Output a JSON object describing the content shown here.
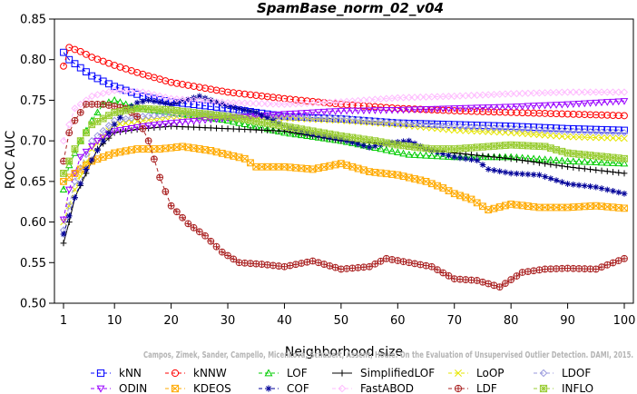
{
  "chart_data": {
    "type": "line",
    "title": "SpamBase_norm_02_v04",
    "xlabel": "Neighborhood size",
    "ylabel": "ROC AUC",
    "xlim": [
      1,
      100
    ],
    "ylim": [
      0.5,
      0.85
    ],
    "xticks": [
      1,
      10,
      20,
      30,
      40,
      50,
      60,
      70,
      80,
      90,
      100
    ],
    "yticks": [
      0.5,
      0.55,
      0.6,
      0.65,
      0.7,
      0.75,
      0.8,
      0.85
    ],
    "ytick_labels": [
      "0.50",
      "0.55",
      "0.60",
      "0.65",
      "0.70",
      "0.75",
      "0.80",
      "0.85"
    ],
    "grid": false,
    "legend_position": "bottom",
    "watermark": "Campos, Zimek, Sander, Campello, Micenkova, Schubert, Assent, Houle: On the Evaluation of Unsupervised Outlier Detection. DAMI, 2015.",
    "series": [
      {
        "name": "kNN",
        "color": "#0000ff",
        "marker": "square",
        "dash": "4,3",
        "points": [
          [
            1,
            0.809
          ],
          [
            2,
            0.8
          ],
          [
            4,
            0.79
          ],
          [
            6,
            0.78
          ],
          [
            10,
            0.767
          ],
          [
            15,
            0.755
          ],
          [
            20,
            0.748
          ],
          [
            30,
            0.74
          ],
          [
            40,
            0.73
          ],
          [
            50,
            0.727
          ],
          [
            60,
            0.722
          ],
          [
            70,
            0.72
          ],
          [
            80,
            0.718
          ],
          [
            90,
            0.715
          ],
          [
            100,
            0.713
          ]
        ]
      },
      {
        "name": "kNNW",
        "color": "#ff0000",
        "marker": "circle",
        "dash": "4,3",
        "points": [
          [
            1,
            0.792
          ],
          [
            2,
            0.815
          ],
          [
            4,
            0.81
          ],
          [
            6,
            0.803
          ],
          [
            10,
            0.793
          ],
          [
            15,
            0.782
          ],
          [
            20,
            0.772
          ],
          [
            30,
            0.76
          ],
          [
            40,
            0.752
          ],
          [
            50,
            0.745
          ],
          [
            60,
            0.74
          ],
          [
            70,
            0.737
          ],
          [
            80,
            0.735
          ],
          [
            90,
            0.733
          ],
          [
            100,
            0.731
          ]
        ]
      },
      {
        "name": "LOF",
        "color": "#00cc00",
        "marker": "triangle-up",
        "dash": "4,3",
        "points": [
          [
            1,
            0.64
          ],
          [
            2,
            0.67
          ],
          [
            4,
            0.7
          ],
          [
            6,
            0.725
          ],
          [
            8,
            0.745
          ],
          [
            10,
            0.75
          ],
          [
            14,
            0.74
          ],
          [
            20,
            0.735
          ],
          [
            30,
            0.725
          ],
          [
            40,
            0.71
          ],
          [
            50,
            0.7
          ],
          [
            57,
            0.69
          ],
          [
            62,
            0.683
          ],
          [
            70,
            0.68
          ],
          [
            80,
            0.68
          ],
          [
            90,
            0.675
          ],
          [
            100,
            0.672
          ]
        ]
      },
      {
        "name": "SimplifiedLOF",
        "color": "#000000",
        "marker": "plus",
        "dash": "",
        "points": [
          [
            1,
            0.574
          ],
          [
            2,
            0.6
          ],
          [
            3,
            0.63
          ],
          [
            5,
            0.66
          ],
          [
            7,
            0.69
          ],
          [
            10,
            0.71
          ],
          [
            15,
            0.715
          ],
          [
            20,
            0.718
          ],
          [
            30,
            0.715
          ],
          [
            40,
            0.712
          ],
          [
            50,
            0.7
          ],
          [
            55,
            0.698
          ],
          [
            60,
            0.695
          ],
          [
            70,
            0.685
          ],
          [
            80,
            0.678
          ],
          [
            90,
            0.668
          ],
          [
            100,
            0.66
          ]
        ]
      },
      {
        "name": "LoOP",
        "color": "#e6e600",
        "marker": "x",
        "dash": "4,3",
        "points": [
          [
            1,
            0.6
          ],
          [
            3,
            0.64
          ],
          [
            6,
            0.69
          ],
          [
            10,
            0.72
          ],
          [
            15,
            0.725
          ],
          [
            20,
            0.73
          ],
          [
            30,
            0.73
          ],
          [
            40,
            0.728
          ],
          [
            50,
            0.725
          ],
          [
            60,
            0.72
          ],
          [
            70,
            0.713
          ],
          [
            80,
            0.71
          ],
          [
            90,
            0.705
          ],
          [
            100,
            0.703
          ]
        ]
      },
      {
        "name": "LDOF",
        "color": "#9999dd",
        "marker": "diamond",
        "dash": "4,3",
        "points": [
          [
            1,
            0.59
          ],
          [
            3,
            0.65
          ],
          [
            6,
            0.7
          ],
          [
            10,
            0.725
          ],
          [
            15,
            0.73
          ],
          [
            20,
            0.733
          ],
          [
            30,
            0.733
          ],
          [
            40,
            0.73
          ],
          [
            50,
            0.728
          ],
          [
            60,
            0.722
          ],
          [
            70,
            0.718
          ],
          [
            80,
            0.715
          ],
          [
            90,
            0.712
          ],
          [
            100,
            0.71
          ]
        ]
      },
      {
        "name": "ODIN",
        "color": "#9900ff",
        "marker": "triangle-down",
        "dash": "4,3",
        "points": [
          [
            1,
            0.603
          ],
          [
            2,
            0.64
          ],
          [
            4,
            0.68
          ],
          [
            7,
            0.7
          ],
          [
            10,
            0.712
          ],
          [
            15,
            0.718
          ],
          [
            20,
            0.722
          ],
          [
            30,
            0.728
          ],
          [
            40,
            0.733
          ],
          [
            50,
            0.737
          ],
          [
            60,
            0.738
          ],
          [
            70,
            0.74
          ],
          [
            80,
            0.742
          ],
          [
            90,
            0.745
          ],
          [
            100,
            0.749
          ]
        ]
      },
      {
        "name": "KDEOS",
        "color": "#ffaa00",
        "marker": "square-x",
        "dash": "4,3",
        "points": [
          [
            1,
            0.65
          ],
          [
            3,
            0.66
          ],
          [
            6,
            0.675
          ],
          [
            10,
            0.685
          ],
          [
            14,
            0.69
          ],
          [
            18,
            0.69
          ],
          [
            22,
            0.693
          ],
          [
            27,
            0.688
          ],
          [
            33,
            0.678
          ],
          [
            35,
            0.668
          ],
          [
            40,
            0.668
          ],
          [
            45,
            0.665
          ],
          [
            50,
            0.672
          ],
          [
            55,
            0.662
          ],
          [
            60,
            0.658
          ],
          [
            65,
            0.65
          ],
          [
            68,
            0.642
          ],
          [
            70,
            0.635
          ],
          [
            73,
            0.628
          ],
          [
            76,
            0.615
          ],
          [
            80,
            0.622
          ],
          [
            85,
            0.618
          ],
          [
            90,
            0.618
          ],
          [
            95,
            0.62
          ],
          [
            100,
            0.617
          ]
        ]
      },
      {
        "name": "COF",
        "color": "#000099",
        "marker": "asterisk",
        "dash": "4,3",
        "points": [
          [
            1,
            0.585
          ],
          [
            3,
            0.63
          ],
          [
            5,
            0.665
          ],
          [
            8,
            0.7
          ],
          [
            10,
            0.72
          ],
          [
            12,
            0.738
          ],
          [
            14,
            0.747
          ],
          [
            16,
            0.75
          ],
          [
            20,
            0.745
          ],
          [
            25,
            0.755
          ],
          [
            30,
            0.743
          ],
          [
            35,
            0.735
          ],
          [
            40,
            0.718
          ],
          [
            45,
            0.708
          ],
          [
            50,
            0.702
          ],
          [
            55,
            0.692
          ],
          [
            58,
            0.697
          ],
          [
            62,
            0.7
          ],
          [
            65,
            0.69
          ],
          [
            70,
            0.68
          ],
          [
            74,
            0.676
          ],
          [
            76,
            0.665
          ],
          [
            80,
            0.66
          ],
          [
            85,
            0.658
          ],
          [
            90,
            0.647
          ],
          [
            95,
            0.643
          ],
          [
            100,
            0.635
          ]
        ]
      },
      {
        "name": "FastABOD",
        "color": "#ffbbff",
        "marker": "diamond",
        "dash": "4,3",
        "points": [
          [
            1,
            0.7
          ],
          [
            3,
            0.74
          ],
          [
            6,
            0.755
          ],
          [
            10,
            0.762
          ],
          [
            15,
            0.76
          ],
          [
            20,
            0.752
          ],
          [
            30,
            0.747
          ],
          [
            40,
            0.745
          ],
          [
            50,
            0.748
          ],
          [
            60,
            0.753
          ],
          [
            70,
            0.755
          ],
          [
            80,
            0.758
          ],
          [
            90,
            0.76
          ],
          [
            100,
            0.76
          ]
        ]
      },
      {
        "name": "LDF",
        "color": "#aa2222",
        "marker": "circle-plus",
        "dash": "4,3",
        "points": [
          [
            1,
            0.675
          ],
          [
            2,
            0.71
          ],
          [
            3,
            0.725
          ],
          [
            5,
            0.745
          ],
          [
            8,
            0.745
          ],
          [
            12,
            0.74
          ],
          [
            14,
            0.73
          ],
          [
            16,
            0.7
          ],
          [
            18,
            0.655
          ],
          [
            20,
            0.62
          ],
          [
            23,
            0.598
          ],
          [
            26,
            0.583
          ],
          [
            29,
            0.563
          ],
          [
            32,
            0.55
          ],
          [
            36,
            0.548
          ],
          [
            40,
            0.545
          ],
          [
            45,
            0.552
          ],
          [
            50,
            0.542
          ],
          [
            55,
            0.545
          ],
          [
            58,
            0.555
          ],
          [
            62,
            0.55
          ],
          [
            66,
            0.545
          ],
          [
            70,
            0.53
          ],
          [
            74,
            0.528
          ],
          [
            78,
            0.52
          ],
          [
            82,
            0.538
          ],
          [
            86,
            0.542
          ],
          [
            90,
            0.543
          ],
          [
            95,
            0.542
          ],
          [
            100,
            0.555
          ]
        ]
      },
      {
        "name": "INFLO",
        "color": "#99cc33",
        "marker": "square-cross",
        "dash": "4,3",
        "points": [
          [
            1,
            0.66
          ],
          [
            3,
            0.69
          ],
          [
            6,
            0.72
          ],
          [
            10,
            0.735
          ],
          [
            14,
            0.74
          ],
          [
            20,
            0.738
          ],
          [
            30,
            0.73
          ],
          [
            40,
            0.718
          ],
          [
            50,
            0.706
          ],
          [
            56,
            0.7
          ],
          [
            60,
            0.695
          ],
          [
            66,
            0.69
          ],
          [
            70,
            0.69
          ],
          [
            76,
            0.693
          ],
          [
            80,
            0.695
          ],
          [
            86,
            0.693
          ],
          [
            90,
            0.685
          ],
          [
            100,
            0.678
          ]
        ]
      }
    ]
  }
}
